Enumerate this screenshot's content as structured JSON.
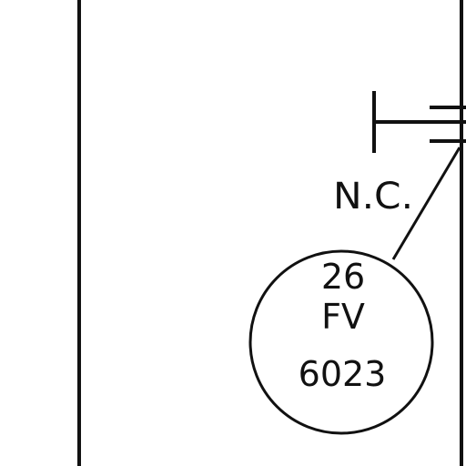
{
  "diagram": {
    "valve_state_label": "N.C.",
    "instrument": {
      "number_top": "26",
      "function_code": "FV",
      "tag_number": "6023"
    },
    "colors": {
      "ink": "#111111",
      "paper": "#ffffff"
    }
  }
}
